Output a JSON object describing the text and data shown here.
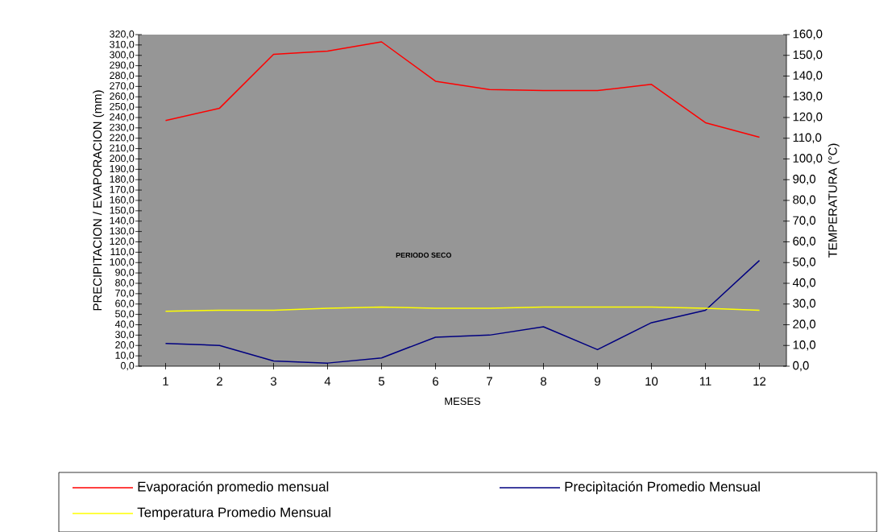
{
  "chart_data": {
    "type": "line",
    "xlabel": "MESES",
    "ylabel": "PRECIPITACION / EVAPORACION (mm)",
    "y2label": "TEMPERATURA (°C)",
    "categories": [
      "1",
      "2",
      "3",
      "4",
      "5",
      "6",
      "7",
      "8",
      "9",
      "10",
      "11",
      "12"
    ],
    "series": [
      {
        "name": "Evaporación promedio mensual",
        "color": "#ff0000",
        "values": [
          237,
          249,
          301,
          304,
          313,
          275,
          267,
          266,
          266,
          272,
          235,
          221
        ]
      },
      {
        "name": "Precipìtación Promedio Mensual",
        "color": "#000080",
        "values": [
          22,
          20,
          5,
          3,
          8,
          28,
          30,
          38,
          16,
          42,
          54,
          102
        ]
      },
      {
        "name": "Temperatura Promedio Mensual",
        "color": "#ffff00",
        "axis": "y2",
        "values": [
          26.5,
          27,
          27,
          28,
          28.5,
          28,
          28,
          28.5,
          28.5,
          28.5,
          28,
          27
        ]
      }
    ],
    "ylim": [
      0,
      320
    ],
    "yticks": [
      {
        "value": 0,
        "label": "0,0"
      },
      {
        "value": 10,
        "label": "10,0"
      },
      {
        "value": 20,
        "label": "20,0"
      },
      {
        "value": 30,
        "label": "30,0"
      },
      {
        "value": 40,
        "label": "40,0"
      },
      {
        "value": 50,
        "label": "50,0"
      },
      {
        "value": 60,
        "label": "60,0"
      },
      {
        "value": 70,
        "label": "70,0"
      },
      {
        "value": 80,
        "label": "80,0"
      },
      {
        "value": 90,
        "label": "90,0"
      },
      {
        "value": 100,
        "label": "100,0"
      },
      {
        "value": 110,
        "label": "110,0"
      },
      {
        "value": 120,
        "label": "120,0"
      },
      {
        "value": 130,
        "label": "130,0"
      },
      {
        "value": 140,
        "label": "140,0"
      },
      {
        "value": 150,
        "label": "150,0"
      },
      {
        "value": 160,
        "label": "160,0"
      },
      {
        "value": 170,
        "label": "170,0"
      },
      {
        "value": 180,
        "label": "180,0"
      },
      {
        "value": 190,
        "label": "190,0"
      },
      {
        "value": 200,
        "label": "200,0"
      },
      {
        "value": 210,
        "label": "210,0"
      },
      {
        "value": 220,
        "label": "220,0"
      },
      {
        "value": 230,
        "label": "230,0"
      },
      {
        "value": 240,
        "label": "240,0"
      },
      {
        "value": 250,
        "label": "250,0"
      },
      {
        "value": 260,
        "label": "260,0"
      },
      {
        "value": 270,
        "label": "270,0"
      },
      {
        "value": 280,
        "label": "280,0"
      },
      {
        "value": 290,
        "label": "290,0"
      },
      {
        "value": 300,
        "label": "300,0"
      },
      {
        "value": 310,
        "label": "310,0"
      },
      {
        "value": 320,
        "label": "320,0"
      }
    ],
    "y2lim": [
      0,
      160
    ],
    "y2ticks": [
      {
        "value": 0,
        "label": "0,0"
      },
      {
        "value": 10,
        "label": "10,0"
      },
      {
        "value": 20,
        "label": "20,0"
      },
      {
        "value": 30,
        "label": "30,0"
      },
      {
        "value": 40,
        "label": "40,0"
      },
      {
        "value": 50,
        "label": "50,0"
      },
      {
        "value": 60,
        "label": "60,0"
      },
      {
        "value": 70,
        "label": "70,0"
      },
      {
        "value": 80,
        "label": "80,0"
      },
      {
        "value": 90,
        "label": "90,0"
      },
      {
        "value": 100,
        "label": "100,0"
      },
      {
        "value": 110,
        "label": "110,0"
      },
      {
        "value": 120,
        "label": "120,0"
      },
      {
        "value": 130,
        "label": "130,0"
      },
      {
        "value": 140,
        "label": "140,0"
      },
      {
        "value": 150,
        "label": "150,0"
      },
      {
        "value": 160,
        "label": "160,0"
      }
    ],
    "annotations": [
      "PERIODO SECO"
    ],
    "legend": "bottom"
  }
}
